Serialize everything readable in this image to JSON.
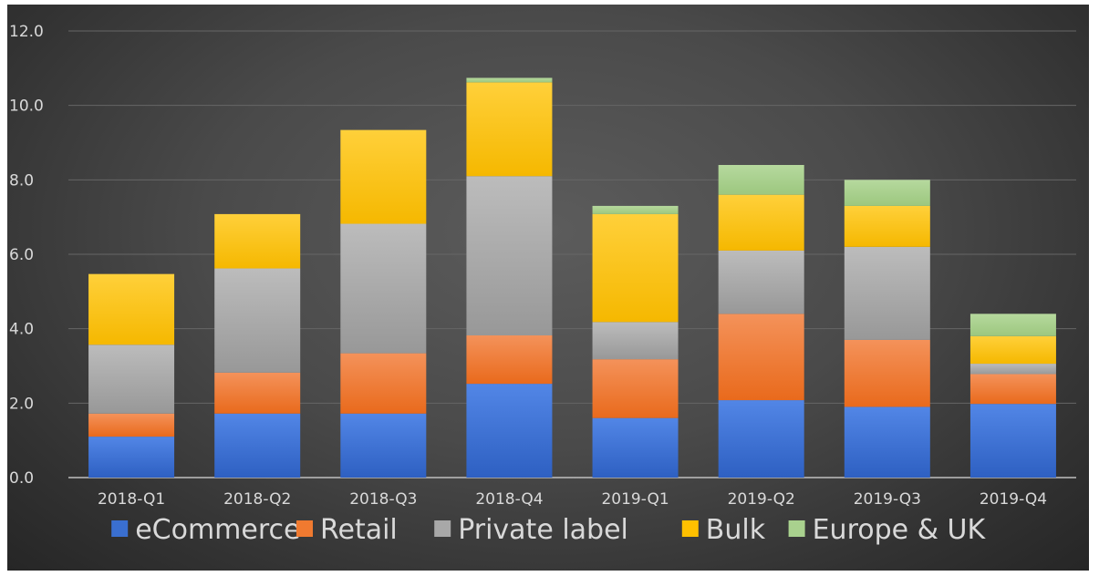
{
  "chart_data": {
    "type": "bar",
    "stacked": true,
    "categories": [
      "2018-Q1",
      "2018-Q2",
      "2018-Q3",
      "2018-Q4",
      "2019-Q1",
      "2019-Q2",
      "2019-Q3",
      "2019-Q4"
    ],
    "series": [
      {
        "name": "eCommerce",
        "color": "#3a6fd0",
        "values": [
          1.1,
          1.72,
          1.72,
          2.52,
          1.6,
          2.08,
          1.9,
          1.98
        ]
      },
      {
        "name": "Retail",
        "color": "#f07a30",
        "values": [
          0.62,
          1.1,
          1.62,
          1.3,
          1.58,
          2.32,
          1.8,
          0.8
        ]
      },
      {
        "name": "Private label",
        "color": "#a8a8a8",
        "values": [
          1.85,
          2.8,
          3.48,
          4.28,
          1.0,
          1.7,
          2.5,
          0.28
        ]
      },
      {
        "name": "Bulk",
        "color": "#ffc000",
        "values": [
          1.9,
          1.46,
          2.52,
          2.52,
          2.9,
          1.5,
          1.1,
          0.74
        ]
      },
      {
        "name": "Europe & UK",
        "color": "#a9d18e",
        "values": [
          0.0,
          0.0,
          0.0,
          0.12,
          0.22,
          0.8,
          0.7,
          0.6
        ]
      }
    ],
    "yticks": [
      "0.0",
      "2.0",
      "4.0",
      "6.0",
      "8.0",
      "10.0",
      "12.0"
    ],
    "ylim": [
      0,
      12
    ],
    "title": "",
    "xlabel": "",
    "ylabel": "",
    "grid": true,
    "legend": "bottom"
  }
}
